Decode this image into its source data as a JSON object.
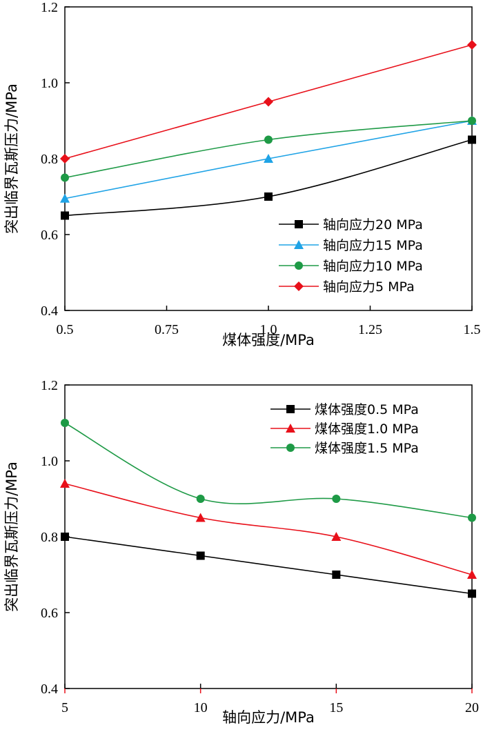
{
  "chart_data": [
    {
      "type": "line",
      "xlabel": "煤体强度/MPa",
      "ylabel": "突出临界瓦斯压力/MPa",
      "xlim": [
        0.5,
        1.5
      ],
      "ylim": [
        0.4,
        1.2
      ],
      "xticks": [
        "0.5",
        "0.75",
        "1.0",
        "1.25",
        "1.5"
      ],
      "yticks": [
        "0.4",
        "0.6",
        "0.8",
        "1.0",
        "1.2"
      ],
      "grid": false,
      "legend_position": "bottom-right",
      "x": [
        0.5,
        1.0,
        1.5
      ],
      "series": [
        {
          "name": "轴向应力20 MPa",
          "values": [
            0.65,
            0.7,
            0.85
          ],
          "color": "#000000",
          "marker": "square",
          "smooth": true
        },
        {
          "name": "轴向应力15 MPa",
          "values": [
            0.695,
            0.8,
            0.9
          ],
          "color": "#1fa3e6",
          "marker": "triangle",
          "smooth": false
        },
        {
          "name": "轴向应力10 MPa",
          "values": [
            0.75,
            0.85,
            0.9
          ],
          "color": "#1e9a46",
          "marker": "circle",
          "smooth": true
        },
        {
          "name": "轴向应力5 MPa",
          "values": [
            0.8,
            0.95,
            1.1
          ],
          "color": "#e8101a",
          "marker": "diamond",
          "smooth": false
        }
      ]
    },
    {
      "type": "line",
      "xlabel": "轴向应力/MPa",
      "ylabel": "突出临界瓦斯压力/MPa",
      "xlim": [
        5,
        20
      ],
      "ylim": [
        0.4,
        1.2
      ],
      "xticks": [
        "5",
        "10",
        "15",
        "20"
      ],
      "yticks": [
        "0.4",
        "0.6",
        "0.8",
        "1.0",
        "1.2"
      ],
      "grid": false,
      "legend_position": "top-right",
      "x": [
        5,
        10,
        15,
        20
      ],
      "series": [
        {
          "name": "煤体强度0.5 MPa",
          "values": [
            0.8,
            0.75,
            0.7,
            0.65
          ],
          "color": "#000000",
          "marker": "square",
          "smooth": false
        },
        {
          "name": "煤体强度1.0 MPa",
          "values": [
            0.94,
            0.85,
            0.8,
            0.7
          ],
          "color": "#e8101a",
          "marker": "triangle",
          "smooth": true
        },
        {
          "name": "煤体强度1.5 MPa",
          "values": [
            1.1,
            0.9,
            0.9,
            0.85
          ],
          "color": "#1e9a46",
          "marker": "circle",
          "smooth": true
        }
      ]
    }
  ]
}
